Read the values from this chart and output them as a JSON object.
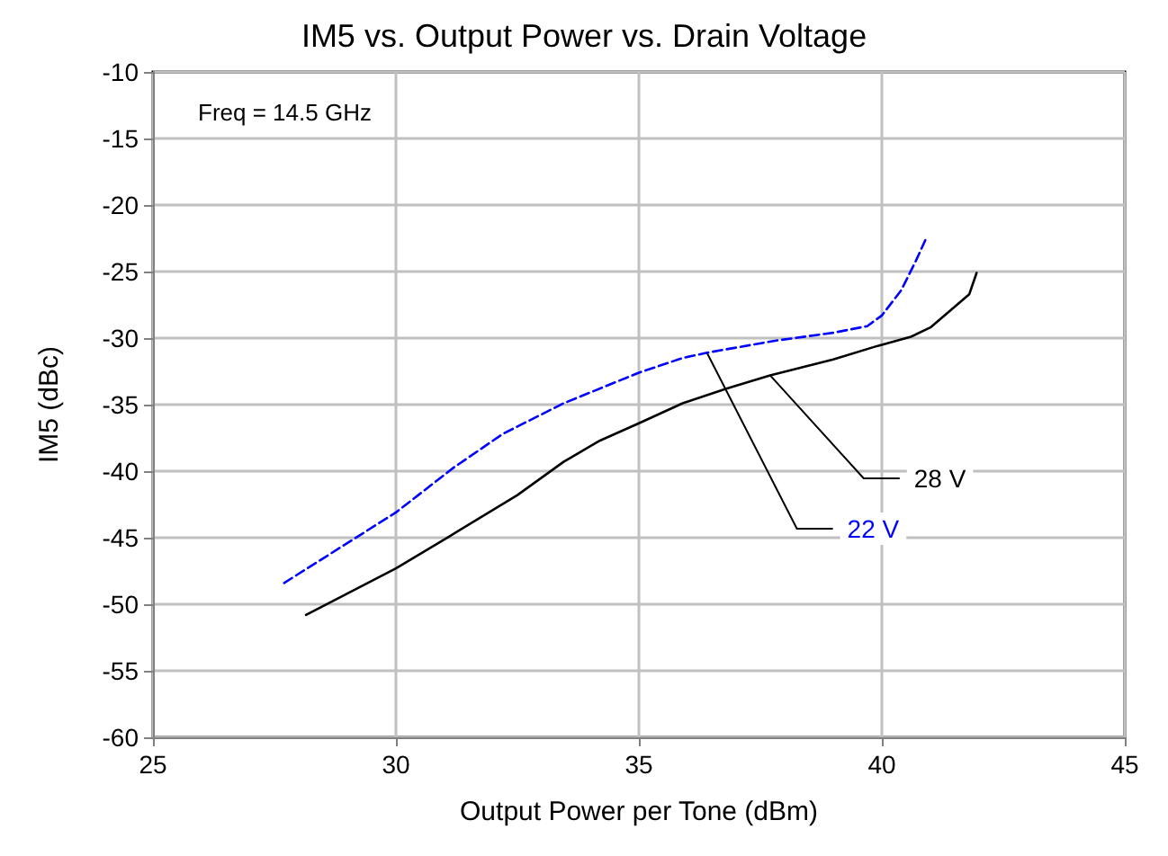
{
  "chart_data": {
    "type": "line",
    "title": "IM5 vs. Output Power vs. Drain Voltage",
    "xlabel": "Output Power per Tone (dBm)",
    "ylabel": "IM5 (dBc)",
    "xlim": [
      25,
      45
    ],
    "xticks": [
      25,
      30,
      35,
      40,
      45
    ],
    "ylim": [
      -60,
      -10
    ],
    "yticks": [
      -60,
      -55,
      -50,
      -45,
      -40,
      -35,
      -30,
      -25,
      -20,
      -15,
      -10
    ],
    "grid": true,
    "legend": false,
    "marker": "none",
    "annotations": [
      "Freq = 14.5 GHz"
    ],
    "series": [
      {
        "name": "28 V",
        "color": "#000000",
        "line_style": "solid",
        "x": [
          28.15,
          30,
          31.1,
          32.5,
          33.45,
          34.2,
          35,
          35.9,
          36.8,
          37.7,
          39,
          39.9,
          40.6,
          41,
          41.8,
          41.95
        ],
        "values": [
          -50.8,
          -47.3,
          -44.9,
          -41.8,
          -39.3,
          -37.7,
          -36.4,
          -34.9,
          -33.8,
          -32.8,
          -31.6,
          -30.6,
          -29.9,
          -29.2,
          -26.7,
          -25.1
        ]
      },
      {
        "name": "22 V",
        "color": "#0000ff",
        "line_style": "dashed",
        "x": [
          27.7,
          30,
          31.2,
          32.2,
          33.45,
          35,
          35.9,
          36.4,
          37.8,
          39,
          39.7,
          40,
          40.4,
          40.7,
          40.9
        ],
        "values": [
          -48.4,
          -43.1,
          -39.7,
          -37.2,
          -34.9,
          -32.6,
          -31.5,
          -31.1,
          -30.2,
          -29.6,
          -29.1,
          -28.3,
          -26.4,
          -24.2,
          -22.6
        ]
      }
    ]
  }
}
